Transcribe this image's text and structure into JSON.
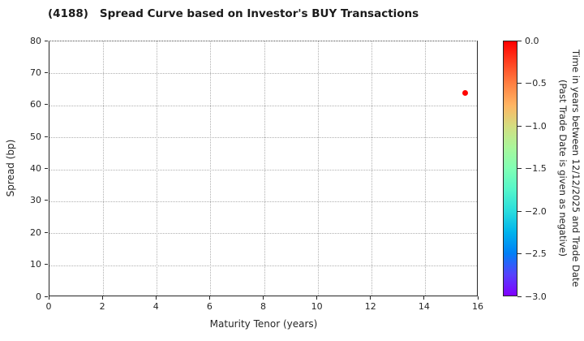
{
  "title": {
    "code": "(4188)",
    "text": "Spread Curve based on Investor's BUY Transactions"
  },
  "chart_data": {
    "type": "scatter",
    "title": "(4188) Spread Curve based on Investor's BUY Transactions",
    "xlabel": "Maturity Tenor (years)",
    "ylabel": "Spread (bp)",
    "xlim": [
      0,
      16
    ],
    "ylim": [
      0,
      80
    ],
    "x_ticks": [
      0,
      2,
      4,
      6,
      8,
      10,
      12,
      14,
      16
    ],
    "y_ticks": [
      0,
      10,
      20,
      30,
      40,
      50,
      60,
      70,
      80
    ],
    "grid": true,
    "grid_style": "dotted",
    "background": "#ffffff",
    "points": [
      {
        "x": 15.5,
        "y": 64,
        "time_years": 0.0,
        "color": "#ff0500"
      }
    ],
    "colorbar": {
      "label_line1": "Time in years between 12/12/2025 and Trade Date",
      "label_line2": "(Past Trade Date is given as negative)",
      "tick_labels": [
        "0.0",
        "−0.5",
        "−1.0",
        "−1.5",
        "−2.0",
        "−2.5",
        "−3.0"
      ],
      "range_top": 0.0,
      "range_bottom": -3.0,
      "colormap": "rainbow",
      "gradient_stops": [
        "#ff0000",
        "#ff4221",
        "#ff8042",
        "#ffb462",
        "#d4dd80",
        "#aaf69b",
        "#80ffb4",
        "#55f6ca",
        "#2adddd",
        "#00b4ec",
        "#0080f6",
        "#5542fd",
        "#8000ff"
      ]
    }
  }
}
